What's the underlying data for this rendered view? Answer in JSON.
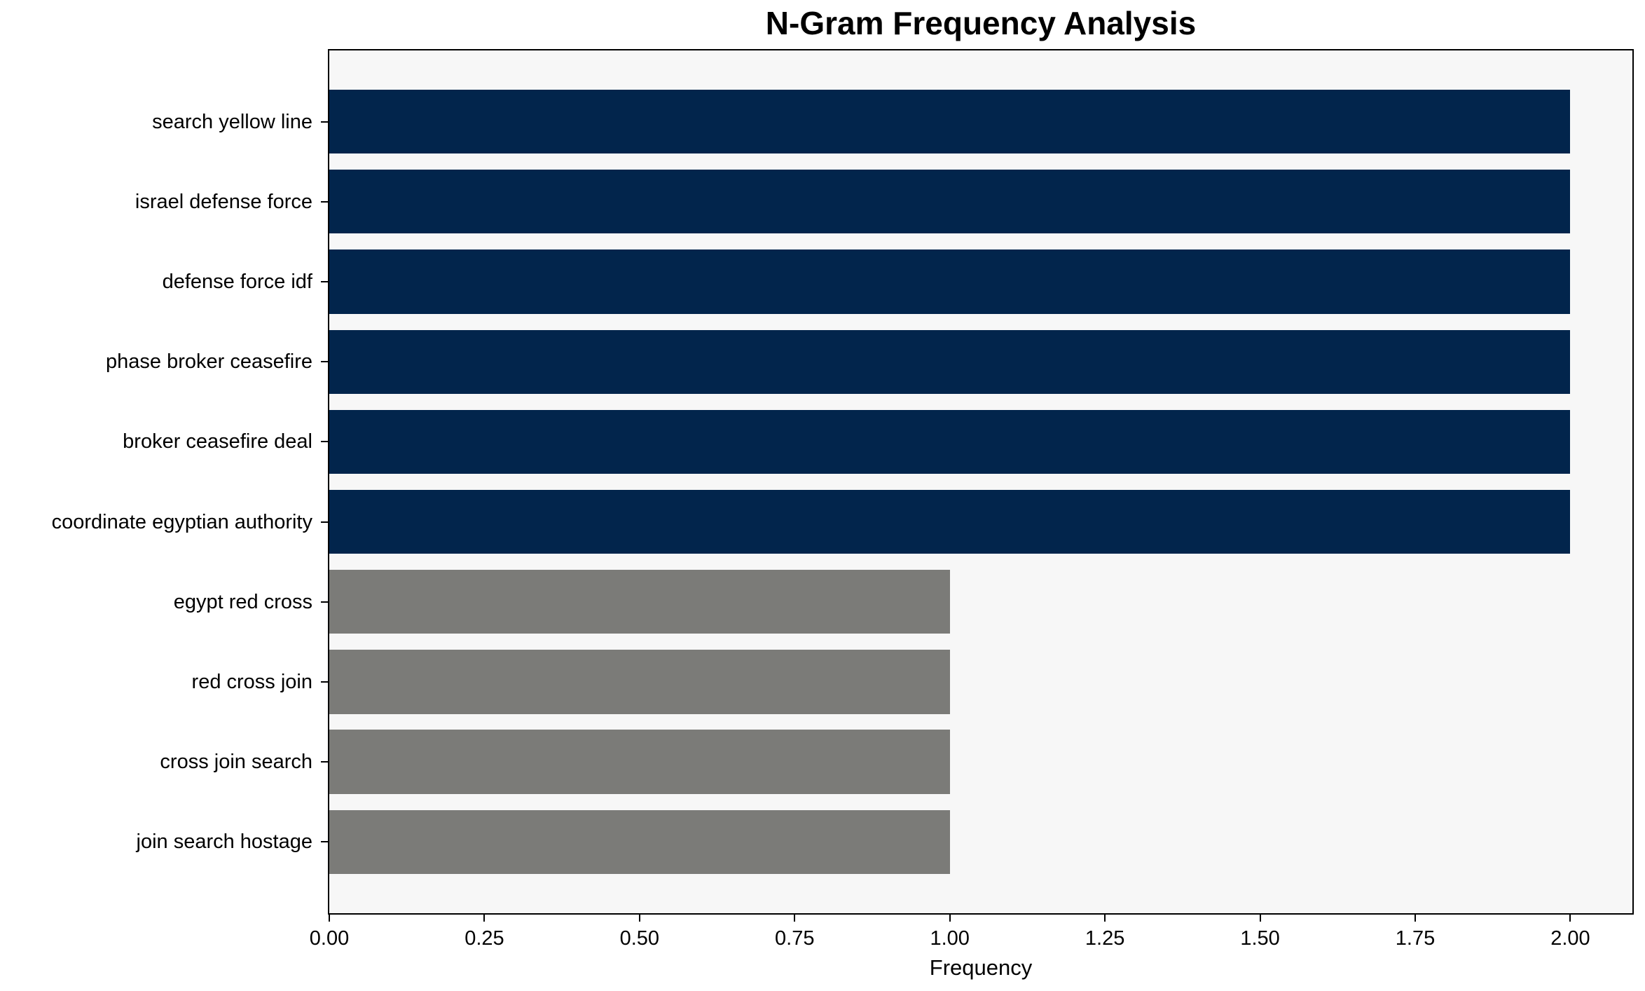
{
  "chart_data": {
    "type": "bar",
    "orientation": "horizontal",
    "title": "N-Gram Frequency Analysis",
    "xlabel": "Frequency",
    "ylabel": "",
    "categories": [
      "search yellow line",
      "israel defense force",
      "defense force idf",
      "phase broker ceasefire",
      "broker ceasefire deal",
      "coordinate egyptian authority",
      "egypt red cross",
      "red cross join",
      "cross join search",
      "join search hostage"
    ],
    "values": [
      2,
      2,
      2,
      2,
      2,
      2,
      1,
      1,
      1,
      1
    ],
    "bar_colors": [
      "#02254C",
      "#02254C",
      "#02254C",
      "#02254C",
      "#02254C",
      "#02254C",
      "#7B7B78",
      "#7B7B78",
      "#7B7B78",
      "#7B7B78"
    ],
    "xlim": [
      0,
      2.1
    ],
    "xticks": [
      0,
      0.25,
      0.5,
      0.75,
      1,
      1.25,
      1.5,
      1.75,
      2
    ],
    "xtick_labels": [
      "0.00",
      "0.25",
      "0.50",
      "0.75",
      "1.00",
      "1.25",
      "1.50",
      "1.75",
      "2.00"
    ],
    "grid": false,
    "legend": false,
    "plot_background": "#F7F7F7",
    "figure_background": "#FFFFFF",
    "spine_color": "#000000",
    "text_color": "#000000"
  }
}
